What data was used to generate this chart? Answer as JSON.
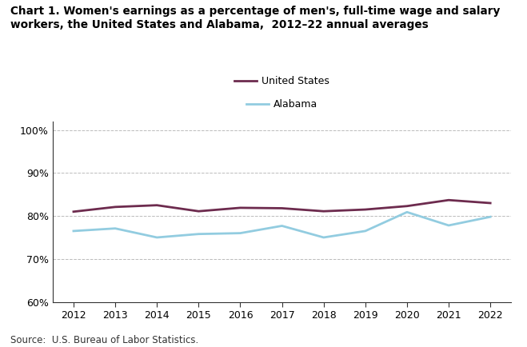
{
  "title_line1": "Chart 1. Women's earnings as a percentage of men's, full-time wage and salary",
  "title_line2": "workers, the United States and Alabama,  2012–22 annual averages",
  "years": [
    2012,
    2013,
    2014,
    2015,
    2016,
    2017,
    2018,
    2019,
    2020,
    2021,
    2022
  ],
  "us_values": [
    81.0,
    82.1,
    82.5,
    81.1,
    81.9,
    81.8,
    81.1,
    81.5,
    82.3,
    83.7,
    83.0
  ],
  "al_values": [
    76.5,
    77.1,
    75.0,
    75.8,
    76.0,
    77.7,
    75.0,
    76.5,
    80.9,
    77.8,
    79.8
  ],
  "us_color": "#6d2b4e",
  "al_color": "#92cce0",
  "us_label": "United States",
  "al_label": "Alabama",
  "ylim": [
    60,
    102
  ],
  "yticks": [
    60,
    70,
    80,
    90,
    100
  ],
  "ytick_labels": [
    "60%",
    "70%",
    "80%",
    "90%",
    "100%"
  ],
  "xlim": [
    2011.5,
    2022.5
  ],
  "source": "Source:  U.S. Bureau of Labor Statistics.",
  "background_color": "#ffffff",
  "line_width": 2.0
}
